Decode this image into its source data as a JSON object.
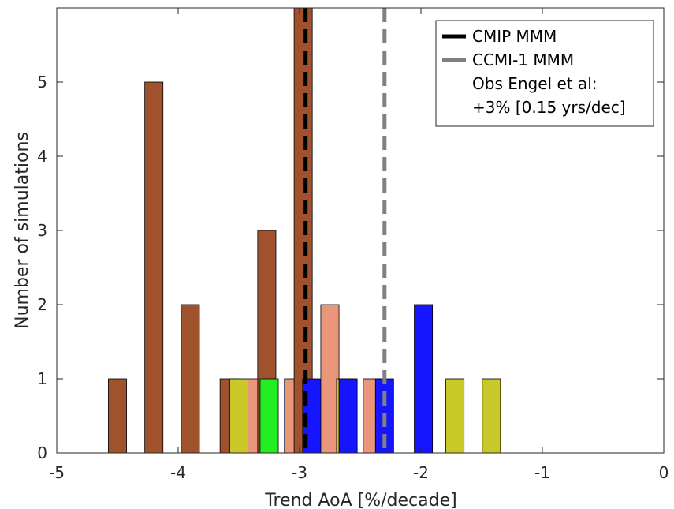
{
  "chart_data": {
    "type": "bar",
    "xlabel": "Trend AoA  [%/decade]",
    "ylabel": "Number of simulations",
    "xlim": [
      -5,
      0
    ],
    "ylim": [
      0,
      6
    ],
    "xticks": [
      -5,
      -4,
      -3,
      -2,
      -1,
      0
    ],
    "xtick_labels": [
      "-5",
      "-4",
      "-3",
      "-2",
      "-1",
      "0"
    ],
    "yticks": [
      0,
      1,
      2,
      3,
      4,
      5
    ],
    "ytick_labels": [
      "0",
      "1",
      "2",
      "3",
      "4",
      "5"
    ],
    "grid": false,
    "legend_position": "top-right",
    "bar_width": 0.15,
    "bars": [
      {
        "x": -4.5,
        "value": 1,
        "color": "#a0522d"
      },
      {
        "x": -4.2,
        "value": 5,
        "color": "#a0522d"
      },
      {
        "x": -3.9,
        "value": 2,
        "color": "#a0522d"
      },
      {
        "x": -3.58,
        "value": 1,
        "color": "#a0522d"
      },
      {
        "x": -3.5,
        "value": 1,
        "color": "#c8c828"
      },
      {
        "x": -3.35,
        "value": 1,
        "color": "#e9967a"
      },
      {
        "x": -3.27,
        "value": 3,
        "color": "#a0522d"
      },
      {
        "x": -3.25,
        "value": 1,
        "color": "#22ee22"
      },
      {
        "x": -3.05,
        "value": 1,
        "color": "#e9967a"
      },
      {
        "x": -2.97,
        "value": 6,
        "color": "#a0522d"
      },
      {
        "x": -2.9,
        "value": 1,
        "color": "#1515ff"
      },
      {
        "x": -2.75,
        "value": 2,
        "color": "#e9967a"
      },
      {
        "x": -2.62,
        "value": 1,
        "color": "#c8c828"
      },
      {
        "x": -2.6,
        "value": 1,
        "color": "#1515ff"
      },
      {
        "x": -2.4,
        "value": 1,
        "color": "#e9967a"
      },
      {
        "x": -2.3,
        "value": 1,
        "color": "#1515ff"
      },
      {
        "x": -1.98,
        "value": 2,
        "color": "#1515ff"
      },
      {
        "x": -1.72,
        "value": 1,
        "color": "#c8c828"
      },
      {
        "x": -1.42,
        "value": 1,
        "color": "#c8c828"
      }
    ],
    "reference_lines": [
      {
        "name": "CMIP MMM",
        "x": -2.95,
        "color": "#000000"
      },
      {
        "name": "CCMI-1 MMM",
        "x": -2.3,
        "color": "#808080"
      }
    ],
    "legend_entries": [
      {
        "label": "CMIP MMM",
        "color": "#000000"
      },
      {
        "label": "CCMI-1 MMM",
        "color": "#808080"
      },
      {
        "label": "Obs Engel et al:",
        "color": ""
      },
      {
        "label": "+3% [0.15 yrs/dec]",
        "color": ""
      }
    ]
  }
}
